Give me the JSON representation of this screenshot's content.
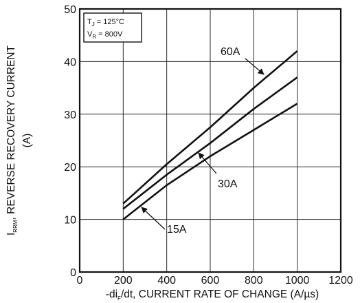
{
  "chart_data": {
    "type": "line",
    "xlabel": {
      "prefix": "-di",
      "sub": "F",
      "suffix": "/dt, CURRENT RATE OF CHANGE (A/µs)"
    },
    "ylabel": {
      "prefix": "I",
      "sub": "RRM",
      "suffix": ", REVERSE RECOVERY CURRENT",
      "line2": "(A)"
    },
    "xlim": [
      0,
      1200
    ],
    "ylim": [
      0,
      50
    ],
    "x_ticks": [
      "0",
      "200",
      "400",
      "600",
      "800",
      "1000",
      "1200"
    ],
    "y_ticks": [
      "0",
      "10",
      "20",
      "30",
      "40",
      "50"
    ],
    "grid": true,
    "conditions": {
      "tj": {
        "prefix": "T",
        "sub": "J",
        "suffix": " = 125°C"
      },
      "vr": {
        "prefix": "V",
        "sub": "R",
        "suffix": " = 800V"
      }
    },
    "series": [
      {
        "name": "60A",
        "x": [
          200,
          400,
          600,
          800,
          1000
        ],
        "y": [
          13,
          20.5,
          27.5,
          35,
          42
        ]
      },
      {
        "name": "30A",
        "x": [
          200,
          400,
          600,
          800,
          1000
        ],
        "y": [
          12,
          18.5,
          24.5,
          31,
          37
        ]
      },
      {
        "name": "15A",
        "x": [
          200,
          400,
          600,
          800,
          1000
        ],
        "y": [
          10,
          16.5,
          22,
          27,
          32
        ]
      }
    ],
    "line_color": "#111111",
    "grid_color": "#2a2a2a"
  }
}
